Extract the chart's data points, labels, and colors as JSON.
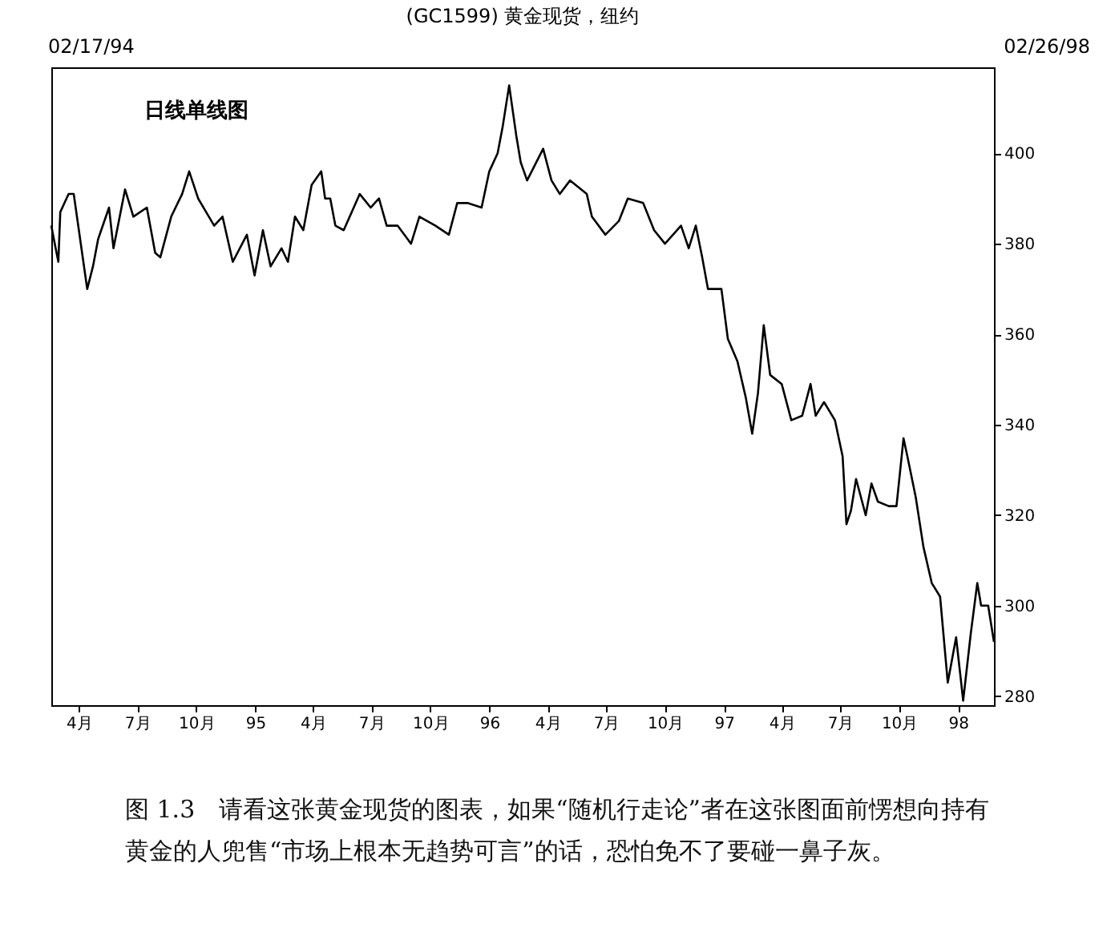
{
  "chart_data": {
    "type": "line",
    "title": "(GC1599) 黄金现货，纽约",
    "annotations": [
      "02/17/94",
      "02/26/98",
      "日线单线图",
      "图 1.3　请看这张黄金现货的图表，如果“随机行走论”者在这张图面前愣想向持有黄金的人兜售“市场上根本无趋势可言”的话，恐怕免不了要碰一鼻子灰。"
    ],
    "x": [
      "1994-02-17",
      "1994-02-21",
      "1994-02-28",
      "1994-03-03",
      "1994-03-16",
      "1994-03-24",
      "1994-04-06",
      "1994-04-14",
      "1994-04-23",
      "1994-05-01",
      "1994-05-18",
      "1994-05-25",
      "1994-06-12",
      "1994-06-25",
      "1994-07-16",
      "1994-07-29",
      "1994-08-06",
      "1994-08-23",
      "1994-09-09",
      "1994-09-20",
      "1994-10-04",
      "1994-10-29",
      "1994-11-11",
      "1994-11-27",
      "1994-12-19",
      "1994-12-31",
      "1995-01-13",
      "1995-01-25",
      "1995-02-11",
      "1995-02-21",
      "1995-03-04",
      "1995-03-17",
      "1995-03-30",
      "1995-04-14",
      "1995-04-20",
      "1995-04-28",
      "1995-05-06",
      "1995-05-19",
      "1995-06-13",
      "1995-06-30",
      "1995-07-13",
      "1995-07-25",
      "1995-08-11",
      "1995-09-01",
      "1995-09-14",
      "1995-10-09",
      "1995-10-30",
      "1995-11-12",
      "1995-11-28",
      "1995-12-20",
      "1996-01-01",
      "1996-01-14",
      "1996-01-22",
      "1996-02-01",
      "1996-02-12",
      "1996-02-19",
      "1996-02-29",
      "1996-03-25",
      "1996-04-07",
      "1996-04-20",
      "1996-05-06",
      "1996-06-01",
      "1996-06-09",
      "1996-06-30",
      "1996-07-21",
      "1996-08-04",
      "1996-08-28",
      "1996-09-14",
      "1996-10-01",
      "1996-10-26",
      "1996-11-07",
      "1996-11-18",
      "1996-11-28",
      "1996-12-07",
      "1996-12-28",
      "1997-01-07",
      "1997-01-22",
      "1997-02-04",
      "1997-02-14",
      "1997-02-23",
      "1997-03-04",
      "1997-03-14",
      "1997-04-01",
      "1997-04-16",
      "1997-05-03",
      "1997-05-16",
      "1997-05-24",
      "1997-06-06",
      "1997-06-23",
      "1997-07-05",
      "1997-07-11",
      "1997-07-18",
      "1997-07-26",
      "1997-08-10",
      "1997-08-19",
      "1997-08-29",
      "1997-09-15",
      "1997-09-27",
      "1997-10-08",
      "1997-10-14",
      "1997-10-27",
      "1997-11-08",
      "1997-11-21",
      "1997-12-04",
      "1997-12-16",
      "1997-12-29",
      "1998-01-09",
      "1998-01-21",
      "1998-01-31",
      "1998-02-06",
      "1998-02-17",
      "1998-02-26"
    ],
    "series": [
      {
        "color": "#000000",
        "values": [
          384,
          381,
          376,
          387,
          391,
          391,
          378,
          370,
          375,
          381,
          388,
          379,
          392,
          386,
          388,
          378,
          377,
          386,
          391,
          396,
          390,
          384,
          386,
          376,
          382,
          373,
          383,
          375,
          379,
          376,
          386,
          383,
          393,
          396,
          390,
          390,
          384,
          383,
          391,
          388,
          390,
          384,
          384,
          380,
          386,
          384,
          382,
          389,
          389,
          388,
          396,
          400,
          406,
          415,
          404,
          398,
          394,
          401,
          394,
          391,
          394,
          391,
          386,
          382,
          385,
          390,
          389,
          383,
          380,
          384,
          379,
          384,
          377,
          370,
          370,
          359,
          354,
          346,
          338,
          347,
          362,
          351,
          349,
          341,
          342,
          349,
          342,
          345,
          341,
          333,
          318,
          321,
          328,
          320,
          327,
          323,
          322,
          322,
          337,
          333,
          324,
          313,
          305,
          302,
          283,
          293,
          279,
          294,
          305,
          300,
          300,
          292
        ]
      }
    ],
    "xlim": [
      "1994-02-17",
      "1998-02-26"
    ],
    "xticks": [
      {
        "value": "1994-04",
        "label": "4月"
      },
      {
        "value": "1994-07",
        "label": "7月"
      },
      {
        "value": "1994-10",
        "label": "10月"
      },
      {
        "value": "1995-01",
        "label": "95"
      },
      {
        "value": "1995-04",
        "label": "4月"
      },
      {
        "value": "1995-07",
        "label": "7月"
      },
      {
        "value": "1995-10",
        "label": "10月"
      },
      {
        "value": "1996-01",
        "label": "96"
      },
      {
        "value": "1996-04",
        "label": "4月"
      },
      {
        "value": "1996-07",
        "label": "7月"
      },
      {
        "value": "1996-10",
        "label": "10月"
      },
      {
        "value": "1997-01",
        "label": "97"
      },
      {
        "value": "1997-04",
        "label": "4月"
      },
      {
        "value": "1997-07",
        "label": "7月"
      },
      {
        "value": "1997-10",
        "label": "10月"
      },
      {
        "value": "1998-01",
        "label": "98"
      }
    ],
    "ylim": [
      278,
      419
    ],
    "yticks": [
      280,
      300,
      320,
      340,
      360,
      380,
      400
    ]
  }
}
